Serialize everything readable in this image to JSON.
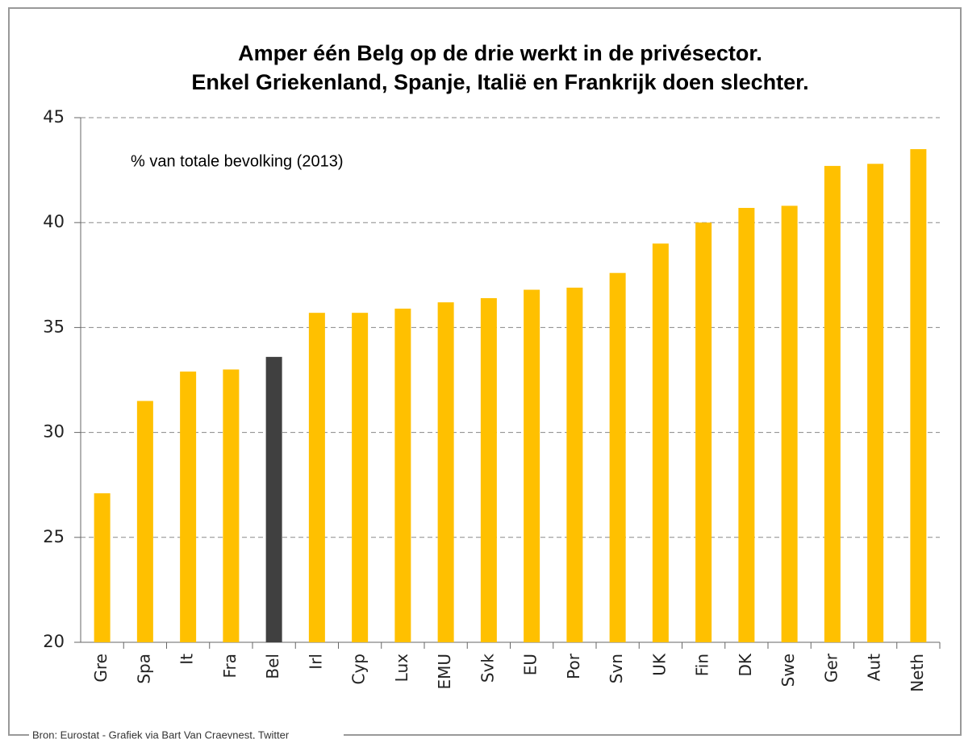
{
  "chart_data": {
    "type": "bar",
    "title": [
      "Amper één Belg op de drie werkt in de privésector.",
      "Enkel Griekenland, Spanje, Italië en Frankrijk doen slechter."
    ],
    "annotation": "% van totale bevolking (2013)",
    "source": "Bron: Eurostat - Grafiek via Bart Van Craeynest, Twitter",
    "categories": [
      "Gre",
      "Spa",
      "It",
      "Fra",
      "Bel",
      "Irl",
      "Cyp",
      "Lux",
      "EMU",
      "Svk",
      "EU",
      "Por",
      "Svn",
      "UK",
      "Fin",
      "DK",
      "Swe",
      "Ger",
      "Aut",
      "Neth"
    ],
    "values": [
      27.1,
      31.5,
      32.9,
      33.0,
      33.6,
      35.7,
      35.7,
      35.9,
      36.2,
      36.4,
      36.8,
      36.9,
      37.6,
      39.0,
      40.0,
      40.7,
      40.8,
      42.7,
      42.8,
      43.5
    ],
    "colors": [
      "#ffc000",
      "#ffc000",
      "#ffc000",
      "#ffc000",
      "#404040",
      "#ffc000",
      "#ffc000",
      "#ffc000",
      "#ffc000",
      "#ffc000",
      "#ffc000",
      "#ffc000",
      "#ffc000",
      "#ffc000",
      "#ffc000",
      "#ffc000",
      "#ffc000",
      "#ffc000",
      "#ffc000",
      "#ffc000"
    ],
    "ylim": [
      20,
      45
    ],
    "yticks": [
      20,
      25,
      30,
      35,
      40,
      45
    ],
    "grid": true
  }
}
